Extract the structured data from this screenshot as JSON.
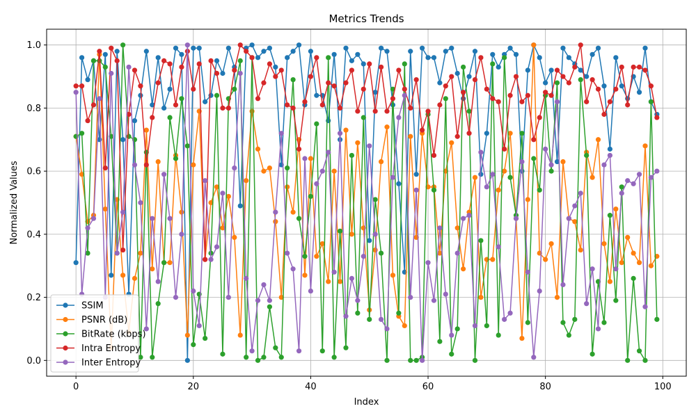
{
  "chart_data": {
    "type": "line",
    "title": "Metrics Trends",
    "xlabel": "Index",
    "ylabel": "Normalized Values",
    "xlim": [
      -5,
      104
    ],
    "ylim": [
      -0.05,
      1.05
    ],
    "x_ticks": [
      0,
      20,
      40,
      60,
      80,
      100
    ],
    "x_tick_labels": [
      "0",
      "20",
      "40",
      "60",
      "80",
      "100"
    ],
    "y_ticks": [
      0.0,
      0.2,
      0.4,
      0.6,
      0.8,
      1.0
    ],
    "y_tick_labels": [
      "0.0",
      "0.2",
      "0.4",
      "0.6",
      "0.8",
      "1.0"
    ],
    "grid": true,
    "legend_position": "lower-left",
    "x": [
      0,
      1,
      2,
      3,
      4,
      5,
      6,
      7,
      8,
      9,
      10,
      11,
      12,
      13,
      14,
      15,
      16,
      17,
      18,
      19,
      20,
      21,
      22,
      23,
      24,
      25,
      26,
      27,
      28,
      29,
      30,
      31,
      32,
      33,
      34,
      35,
      36,
      37,
      38,
      39,
      40,
      41,
      42,
      43,
      44,
      45,
      46,
      47,
      48,
      49,
      50,
      51,
      52,
      53,
      54,
      55,
      56,
      57,
      58,
      59,
      60,
      61,
      62,
      63,
      64,
      65,
      66,
      67,
      68,
      69,
      70,
      71,
      72,
      73,
      74,
      75,
      76,
      77,
      78,
      79,
      80,
      81,
      82,
      83,
      84,
      85,
      86,
      87,
      88,
      89,
      90,
      91,
      92,
      93,
      94,
      95,
      96,
      97,
      98,
      99
    ],
    "series": [
      {
        "name": "SSIM",
        "color": "#1f77b4",
        "values": [
          0.31,
          0.96,
          0.89,
          0.95,
          0.7,
          0.97,
          0.27,
          0.98,
          0.7,
          0.21,
          0.76,
          0.84,
          0.98,
          0.81,
          0.96,
          0.8,
          0.86,
          0.99,
          0.97,
          0.0,
          0.99,
          0.99,
          0.82,
          0.84,
          0.95,
          0.91,
          0.99,
          0.93,
          0.49,
          0.99,
          1.0,
          0.96,
          0.98,
          0.99,
          0.93,
          0.62,
          0.96,
          0.98,
          1.0,
          0.81,
          0.98,
          0.84,
          0.84,
          0.76,
          0.97,
          0.7,
          0.99,
          0.95,
          0.97,
          0.94,
          0.38,
          0.85,
          0.99,
          0.98,
          0.81,
          0.56,
          0.28,
          0.98,
          0.59,
          0.99,
          0.96,
          0.96,
          0.88,
          0.98,
          0.99,
          0.91,
          0.83,
          0.9,
          0.98,
          0.59,
          0.72,
          0.97,
          0.93,
          0.97,
          0.99,
          0.97,
          0.6,
          0.92,
          1.0,
          0.96,
          0.88,
          0.92,
          0.63,
          0.99,
          0.96,
          0.94,
          0.92,
          0.9,
          0.97,
          0.99,
          0.87,
          0.67,
          0.96,
          0.87,
          0.83,
          0.9,
          0.85,
          0.99,
          0.82,
          0.78
        ]
      },
      {
        "name": "PSNR (dB)",
        "color": "#ff7f0e",
        "values": [
          0.71,
          0.59,
          0.44,
          0.46,
          0.97,
          0.48,
          0.04,
          0.51,
          0.27,
          0.09,
          0.26,
          0.34,
          0.73,
          0.29,
          0.63,
          0.31,
          0.31,
          0.65,
          0.47,
          0.08,
          0.62,
          0.79,
          0.32,
          0.5,
          0.55,
          0.42,
          0.52,
          0.39,
          0.08,
          0.57,
          0.79,
          0.67,
          0.6,
          0.61,
          0.44,
          0.2,
          0.55,
          0.47,
          0.7,
          0.27,
          0.64,
          0.33,
          0.37,
          0.25,
          0.6,
          0.25,
          0.73,
          0.4,
          0.69,
          0.42,
          0.16,
          0.35,
          0.63,
          0.74,
          0.27,
          0.14,
          0.11,
          0.71,
          0.39,
          0.72,
          0.55,
          0.55,
          0.34,
          0.6,
          0.69,
          0.42,
          0.29,
          0.47,
          0.58,
          0.2,
          0.32,
          0.32,
          0.54,
          0.6,
          0.72,
          0.45,
          0.07,
          0.51,
          1.0,
          0.34,
          0.32,
          0.37,
          0.2,
          0.63,
          0.45,
          0.44,
          0.35,
          0.66,
          0.58,
          0.7,
          0.37,
          0.25,
          0.48,
          0.31,
          0.39,
          0.34,
          0.31,
          0.68,
          0.3,
          0.33
        ]
      },
      {
        "name": "BitRate (kbps)",
        "color": "#2ca02c",
        "values": [
          0.71,
          0.72,
          0.34,
          0.95,
          0.95,
          0.93,
          0.71,
          0.34,
          1.0,
          0.71,
          0.7,
          0.01,
          0.66,
          0.01,
          0.18,
          0.31,
          0.77,
          0.64,
          0.83,
          0.68,
          0.05,
          0.21,
          0.07,
          0.34,
          0.84,
          0.02,
          0.83,
          0.86,
          0.95,
          0.01,
          0.96,
          0.0,
          0.01,
          0.17,
          0.04,
          0.01,
          0.61,
          0.89,
          0.45,
          0.33,
          0.52,
          0.75,
          0.03,
          0.96,
          0.01,
          0.41,
          0.04,
          0.65,
          0.15,
          0.77,
          0.13,
          0.51,
          0.34,
          0.0,
          0.86,
          0.15,
          0.94,
          0.0,
          0.0,
          0.01,
          0.78,
          0.54,
          0.06,
          0.83,
          0.02,
          0.1,
          0.93,
          0.79,
          0.0,
          0.38,
          0.11,
          0.94,
          0.08,
          0.96,
          0.58,
          0.46,
          0.72,
          0.12,
          0.64,
          0.54,
          0.84,
          0.6,
          0.88,
          0.12,
          0.08,
          0.13,
          0.89,
          0.65,
          0.02,
          0.25,
          0.12,
          0.46,
          0.19,
          0.55,
          0.0,
          0.26,
          0.03,
          0.0,
          0.82,
          0.13
        ]
      },
      {
        "name": "Intra Entropy",
        "color": "#d62728",
        "values": [
          0.87,
          0.87,
          0.76,
          0.81,
          0.98,
          0.61,
          0.99,
          0.95,
          0.35,
          0.78,
          0.92,
          0.87,
          0.62,
          0.77,
          0.88,
          0.95,
          0.94,
          0.81,
          0.93,
          0.98,
          0.86,
          0.94,
          0.32,
          0.95,
          0.91,
          0.8,
          0.8,
          0.92,
          1.0,
          0.98,
          0.96,
          0.83,
          0.88,
          0.94,
          0.9,
          0.92,
          0.81,
          0.8,
          0.67,
          0.82,
          0.9,
          0.96,
          0.81,
          0.88,
          0.87,
          0.8,
          0.88,
          0.92,
          0.79,
          0.86,
          0.94,
          0.79,
          0.93,
          0.79,
          0.83,
          0.92,
          0.86,
          0.8,
          0.89,
          0.73,
          0.79,
          0.65,
          0.81,
          0.87,
          0.9,
          0.71,
          0.85,
          0.72,
          0.89,
          0.96,
          0.86,
          0.83,
          0.82,
          0.67,
          0.84,
          0.9,
          0.82,
          0.84,
          0.7,
          0.77,
          0.85,
          0.84,
          0.92,
          0.9,
          0.88,
          0.93,
          1.0,
          0.82,
          0.89,
          0.86,
          0.78,
          0.82,
          0.86,
          0.93,
          0.81,
          0.93,
          0.93,
          0.92,
          0.87,
          0.77
        ]
      },
      {
        "name": "Inter Entropy",
        "color": "#9467bd",
        "values": [
          0.85,
          0.21,
          0.42,
          0.45,
          0.83,
          0.2,
          0.91,
          0.34,
          0.47,
          0.93,
          0.62,
          0.5,
          0.1,
          0.45,
          0.25,
          0.59,
          0.45,
          0.2,
          0.4,
          1.0,
          0.22,
          0.11,
          0.57,
          0.32,
          0.36,
          0.53,
          0.2,
          0.61,
          0.91,
          0.26,
          0.03,
          0.19,
          0.24,
          0.19,
          0.47,
          0.72,
          0.34,
          0.29,
          0.03,
          0.64,
          0.22,
          0.56,
          0.6,
          0.66,
          0.28,
          0.72,
          0.14,
          0.26,
          0.19,
          0.33,
          0.68,
          0.4,
          0.13,
          0.1,
          0.58,
          0.77,
          0.84,
          0.2,
          0.54,
          0.0,
          0.31,
          0.19,
          0.42,
          0.21,
          0.08,
          0.34,
          0.45,
          0.46,
          0.11,
          0.66,
          0.55,
          0.59,
          0.36,
          0.13,
          0.15,
          0.45,
          0.63,
          0.28,
          0.01,
          0.22,
          0.67,
          0.62,
          0.82,
          0.24,
          0.45,
          0.49,
          0.53,
          0.18,
          0.29,
          0.1,
          0.62,
          0.65,
          0.29,
          0.53,
          0.57,
          0.56,
          0.59,
          0.17,
          0.58,
          0.6
        ]
      }
    ]
  }
}
